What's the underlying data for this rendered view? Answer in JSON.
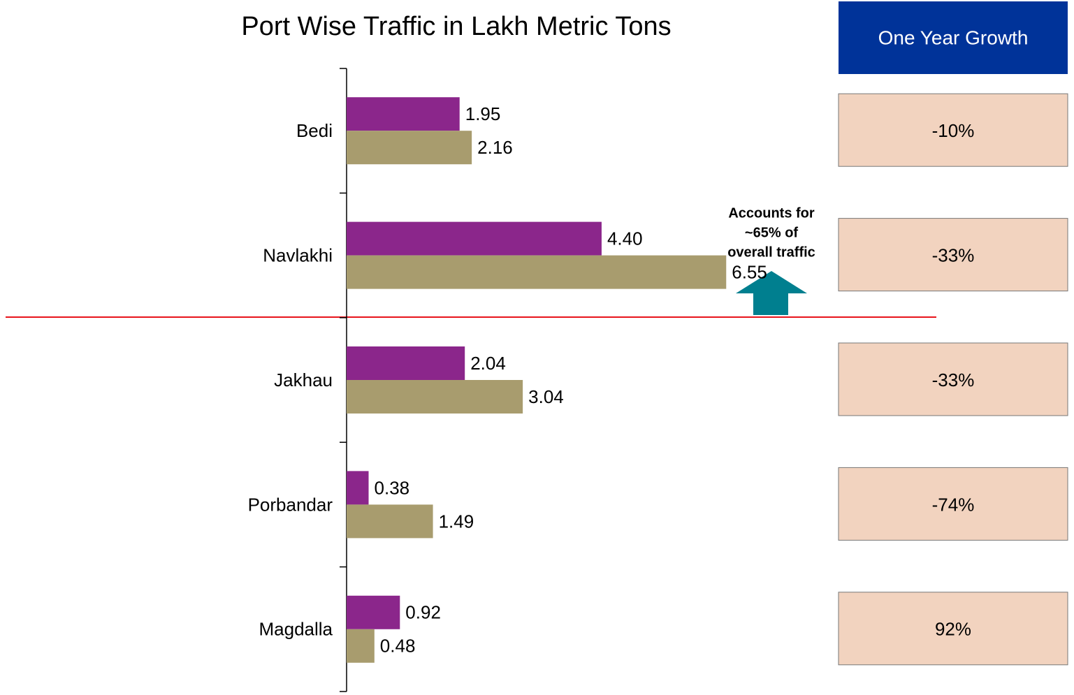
{
  "chart_data": {
    "type": "bar",
    "orientation": "horizontal",
    "title": "Port Wise Traffic in Lakh Metric Tons",
    "categories": [
      "Bedi",
      "Navlakhi",
      "Jakhau",
      "Porbandar",
      "Magdalla"
    ],
    "series": [
      {
        "color": "#8b268b",
        "values": [
          1.95,
          4.4,
          2.04,
          0.38,
          0.92
        ],
        "value_labels": [
          "1.95",
          "4.40",
          "2.04",
          "0.38",
          "0.92"
        ]
      },
      {
        "color": "#a89c6e",
        "values": [
          2.16,
          6.55,
          3.04,
          1.49,
          0.48
        ],
        "value_labels": [
          "2.16",
          "6.55",
          "3.04",
          "1.49",
          "0.48"
        ]
      }
    ],
    "xlim": [
      0,
      8.5
    ],
    "annotation": [
      "Accounts for",
      "~65% of",
      "overall traffic"
    ]
  },
  "growth_table": {
    "header": "One Year Growth",
    "values": [
      "-10%",
      "-33%",
      "-33%",
      "-74%",
      "92%"
    ]
  }
}
